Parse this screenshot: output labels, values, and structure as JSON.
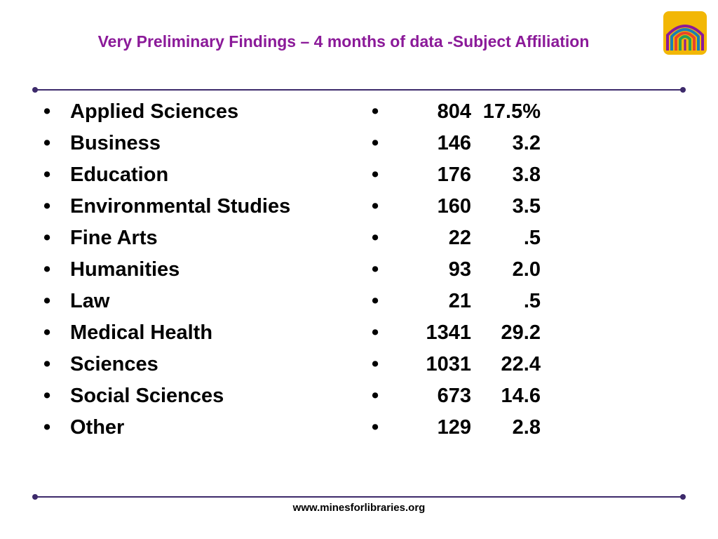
{
  "slide": {
    "title": "Very Preliminary Findings – 4 months of data -Subject Affiliation",
    "footer": "www.minesforlibraries.org",
    "title_color": "#8b1a99",
    "rule_color": "#3d2a6b"
  },
  "logo": {
    "icon": "library-arches-logo",
    "colors": [
      "#f2b705",
      "#8b1a99",
      "#1b7fb5",
      "#e8452c"
    ]
  },
  "bullet": "•",
  "subjects": [
    {
      "label": "Applied Sciences",
      "count": "804",
      "percent": "17.5%"
    },
    {
      "label": "Business",
      "count": "146",
      "percent": "3.2"
    },
    {
      "label": "Education",
      "count": "176",
      "percent": "3.8"
    },
    {
      "label": "Environmental Studies",
      "count": "160",
      "percent": "3.5"
    },
    {
      "label": "Fine Arts",
      "count": "22",
      "percent": ".5"
    },
    {
      "label": "Humanities",
      "count": "93",
      "percent": "2.0"
    },
    {
      "label": "Law",
      "count": "21",
      "percent": ".5"
    },
    {
      "label": "Medical Health",
      "count": "1341",
      "percent": "29.2"
    },
    {
      "label": "Sciences",
      "count": "1031",
      "percent": "22.4"
    },
    {
      "label": "Social Sciences",
      "count": "673",
      "percent": "14.6"
    },
    {
      "label": "Other",
      "count": "129",
      "percent": "2.8"
    }
  ]
}
